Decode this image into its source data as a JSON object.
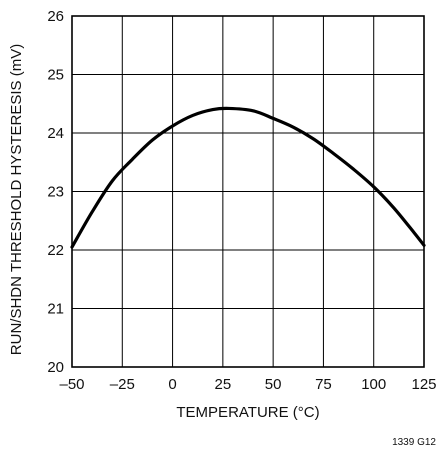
{
  "chart_data": {
    "type": "line",
    "xlabel": "TEMPERATURE (°C)",
    "ylabel": "RUN/SHDN THRESHOLD HYSTERESIS (mV)",
    "xlim": [
      -50,
      125
    ],
    "ylim": [
      20,
      26
    ],
    "x_ticks": [
      -50,
      -25,
      0,
      25,
      50,
      75,
      100,
      125
    ],
    "x_tick_labels": [
      "–50",
      "–25",
      "0",
      "25",
      "50",
      "75",
      "100",
      "125"
    ],
    "y_ticks": [
      20,
      21,
      22,
      23,
      24,
      25,
      26
    ],
    "y_tick_labels": [
      "20",
      "21",
      "22",
      "23",
      "24",
      "25",
      "26"
    ],
    "grid": true,
    "series": [
      {
        "x": [
          -50,
          -40,
          -30,
          -20,
          -10,
          0,
          10,
          20,
          28,
          40,
          50,
          60,
          70,
          80,
          90,
          100,
          110,
          120,
          125
        ],
        "y": [
          22.05,
          22.65,
          23.18,
          23.55,
          23.88,
          24.12,
          24.3,
          24.4,
          24.42,
          24.38,
          24.25,
          24.1,
          23.9,
          23.65,
          23.38,
          23.08,
          22.72,
          22.3,
          22.08
        ]
      }
    ],
    "line_color": "#000000",
    "grid_color": "#000000"
  },
  "figure_id": "1339 G12"
}
